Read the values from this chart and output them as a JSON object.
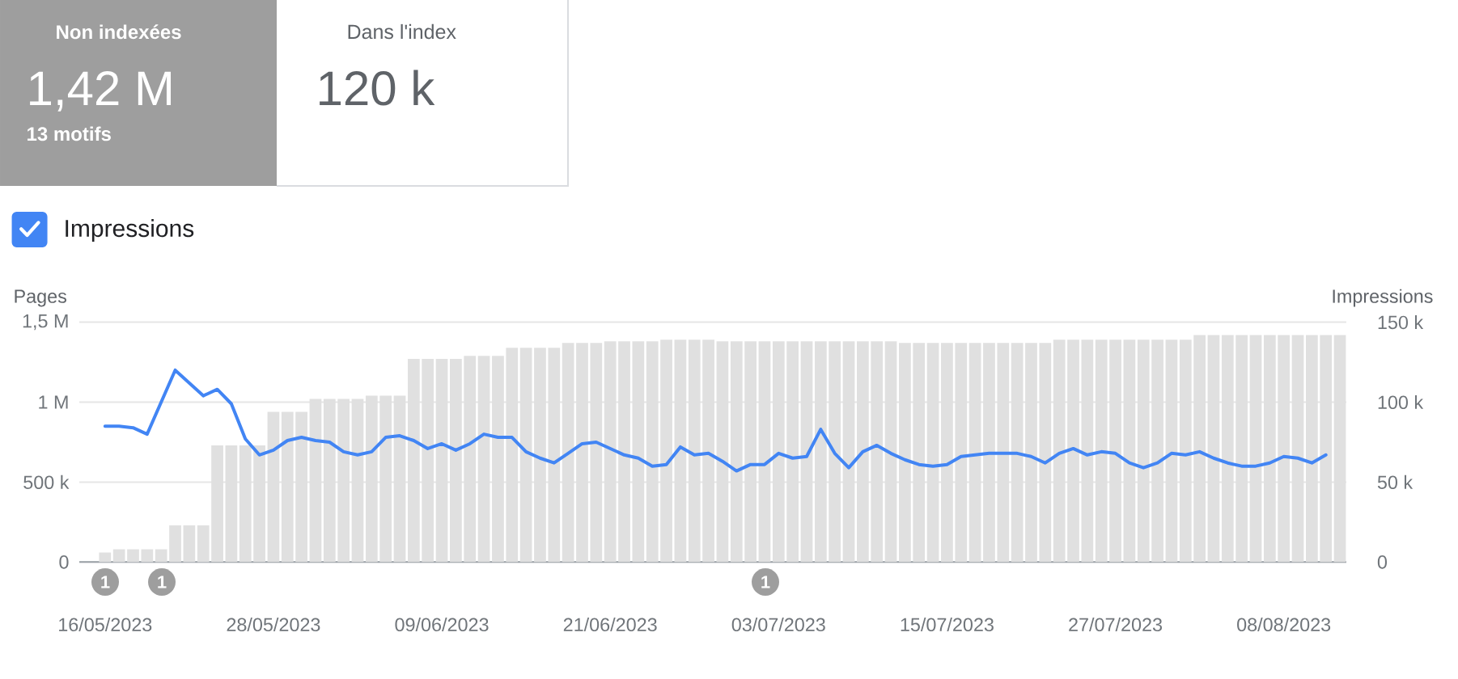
{
  "chart_data": {
    "type": "bar",
    "x": [
      "2023-05-16",
      "2023-05-17",
      "2023-05-18",
      "2023-05-19",
      "2023-05-20",
      "2023-05-21",
      "2023-05-22",
      "2023-05-23",
      "2023-05-24",
      "2023-05-25",
      "2023-05-26",
      "2023-05-27",
      "2023-05-28",
      "2023-05-29",
      "2023-05-30",
      "2023-05-31",
      "2023-06-01",
      "2023-06-02",
      "2023-06-03",
      "2023-06-04",
      "2023-06-05",
      "2023-06-06",
      "2023-06-07",
      "2023-06-08",
      "2023-06-09",
      "2023-06-10",
      "2023-06-11",
      "2023-06-12",
      "2023-06-13",
      "2023-06-14",
      "2023-06-15",
      "2023-06-16",
      "2023-06-17",
      "2023-06-18",
      "2023-06-19",
      "2023-06-20",
      "2023-06-21",
      "2023-06-22",
      "2023-06-23",
      "2023-06-24",
      "2023-06-25",
      "2023-06-26",
      "2023-06-27",
      "2023-06-28",
      "2023-06-29",
      "2023-06-30",
      "2023-07-01",
      "2023-07-02",
      "2023-07-03",
      "2023-07-04",
      "2023-07-05",
      "2023-07-06",
      "2023-07-07",
      "2023-07-08",
      "2023-07-09",
      "2023-07-10",
      "2023-07-11",
      "2023-07-12",
      "2023-07-13",
      "2023-07-14",
      "2023-07-15",
      "2023-07-16",
      "2023-07-17",
      "2023-07-18",
      "2023-07-19",
      "2023-07-20",
      "2023-07-21",
      "2023-07-22",
      "2023-07-23",
      "2023-07-24",
      "2023-07-25",
      "2023-07-26",
      "2023-07-27",
      "2023-07-28",
      "2023-07-29",
      "2023-07-30",
      "2023-07-31",
      "2023-08-01",
      "2023-08-02",
      "2023-08-03",
      "2023-08-04",
      "2023-08-05",
      "2023-08-06",
      "2023-08-07",
      "2023-08-08",
      "2023-08-09",
      "2023-08-10",
      "2023-08-11",
      "2023-08-12"
    ],
    "series": [
      {
        "color": "#e0e0e0",
        "values": [
          60000,
          80000,
          80000,
          80000,
          80000,
          230000,
          230000,
          230000,
          730000,
          730000,
          730000,
          730000,
          940000,
          940000,
          940000,
          1020000,
          1020000,
          1020000,
          1020000,
          1040000,
          1040000,
          1040000,
          1270000,
          1270000,
          1270000,
          1270000,
          1290000,
          1290000,
          1290000,
          1340000,
          1340000,
          1340000,
          1340000,
          1370000,
          1370000,
          1370000,
          1380000,
          1380000,
          1380000,
          1380000,
          1390000,
          1390000,
          1390000,
          1390000,
          1380000,
          1380000,
          1380000,
          1380000,
          1380000,
          1380000,
          1380000,
          1380000,
          1380000,
          1380000,
          1380000,
          1380000,
          1380000,
          1370000,
          1370000,
          1370000,
          1370000,
          1370000,
          1370000,
          1370000,
          1370000,
          1370000,
          1370000,
          1370000,
          1390000,
          1390000,
          1390000,
          1390000,
          1390000,
          1390000,
          1390000,
          1390000,
          1390000,
          1390000,
          1420000,
          1420000,
          1420000,
          1420000,
          1420000,
          1420000,
          1420000,
          1420000,
          1420000,
          1420000,
          1420000
        ]
      },
      {
        "type": "line",
        "name": "Impressions",
        "color": "#4285f4",
        "axis": "y2",
        "values": [
          85000,
          85000,
          84000,
          80000,
          100000,
          120000,
          112000,
          104000,
          108000,
          99000,
          77000,
          67000,
          70000,
          76000,
          78000,
          76000,
          75000,
          69000,
          67000,
          69000,
          78000,
          79000,
          76000,
          71000,
          74000,
          70000,
          74000,
          80000,
          78000,
          78000,
          69000,
          65000,
          62000,
          68000,
          74000,
          75000,
          71000,
          67000,
          65000,
          60000,
          61000,
          72000,
          67000,
          68000,
          63000,
          57000,
          61000,
          61000,
          68000,
          65000,
          66000,
          83000,
          68000,
          59000,
          69000,
          73000,
          68000,
          64000,
          61000,
          60000,
          61000,
          66000,
          67000,
          68000,
          68000,
          68000,
          66000,
          62000,
          68000,
          71000,
          67000,
          69000,
          68000,
          62000,
          59000,
          62000,
          68000,
          67000,
          69000,
          65000,
          62000,
          60000,
          60000,
          62000,
          66000,
          65000,
          62000,
          67000,
          null
        ]
      }
    ],
    "ylabel": "Pages",
    "y2label": "Impressions",
    "xlim": [
      "2023-05-14T04:00",
      "2023-08-12T11:00"
    ],
    "xticks": [
      {
        "value": "2023-05-16",
        "label": "16/05/2023"
      },
      {
        "value": "2023-05-28",
        "label": "28/05/2023"
      },
      {
        "value": "2023-06-09",
        "label": "09/06/2023"
      },
      {
        "value": "2023-06-21",
        "label": "21/06/2023"
      },
      {
        "value": "2023-07-03",
        "label": "03/07/2023"
      },
      {
        "value": "2023-07-15",
        "label": "15/07/2023"
      },
      {
        "value": "2023-07-27",
        "label": "27/07/2023"
      },
      {
        "value": "2023-08-08",
        "label": "08/08/2023"
      }
    ],
    "ylim": [
      0,
      1500000
    ],
    "yticks": [
      0,
      {
        "value": 500000,
        "label": "500 k"
      },
      {
        "value": 1000000,
        "label": "1 M"
      },
      {
        "value": 1500000,
        "label": "1,5 M"
      }
    ],
    "y2lim": [
      0,
      150000
    ],
    "y2ticks": [
      0,
      {
        "value": 50000,
        "label": "50 k"
      },
      {
        "value": 100000,
        "label": "100 k"
      },
      {
        "value": 150000,
        "label": "150 k"
      }
    ],
    "grid": "y",
    "legend": "top left",
    "annotations": [
      "Non indexées",
      "1,42 M",
      "13 motifs",
      "Dans l'index",
      "120 k",
      "1",
      "1",
      "1"
    ]
  }
}
